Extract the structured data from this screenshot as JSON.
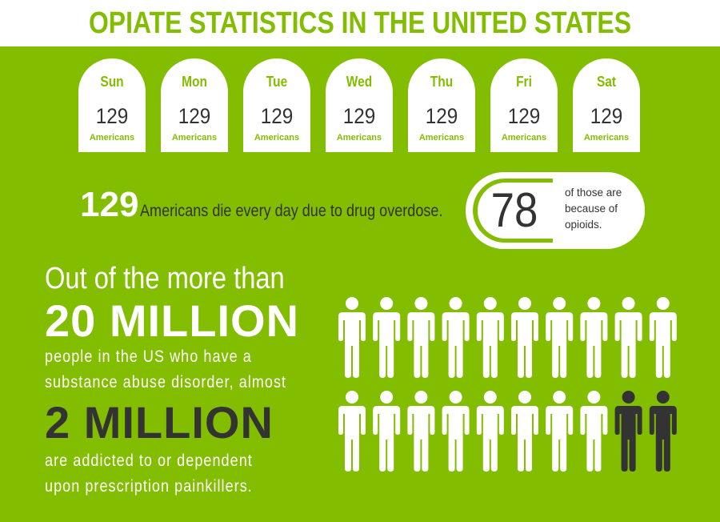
{
  "title": "OPIATE STATISTICS IN THE UNITED STATES",
  "days": [
    {
      "day": "Sun",
      "count": "129",
      "unit": "Americans"
    },
    {
      "day": "Mon",
      "count": "129",
      "unit": "Americans"
    },
    {
      "day": "Tue",
      "count": "129",
      "unit": "Americans"
    },
    {
      "day": "Wed",
      "count": "129",
      "unit": "Americans"
    },
    {
      "day": "Thu",
      "count": "129",
      "unit": "Americans"
    },
    {
      "day": "Fri",
      "count": "129",
      "unit": "Americans"
    },
    {
      "day": "Sat",
      "count": "129",
      "unit": "Americans"
    }
  ],
  "overdose": {
    "number": "129",
    "text": "Americans die every day due to drug overdose."
  },
  "opioids": {
    "number": "78",
    "text_lines": [
      "of those are",
      "because of",
      "opioids."
    ]
  },
  "statement": {
    "line1": "Out of the more than",
    "big1": "20 MILLION",
    "line2": "people in the US who have a",
    "line3": "substance abuse disorder, almost",
    "big2": "2 MILLION",
    "line4": "are addicted to or dependent",
    "line5": "upon prescription painkillers."
  },
  "people_graphic": {
    "total": 20,
    "highlighted": 2,
    "icon": "person-icon"
  },
  "colors": {
    "brand_green": "#82bd00",
    "dark": "#333333",
    "white": "#ffffff"
  }
}
